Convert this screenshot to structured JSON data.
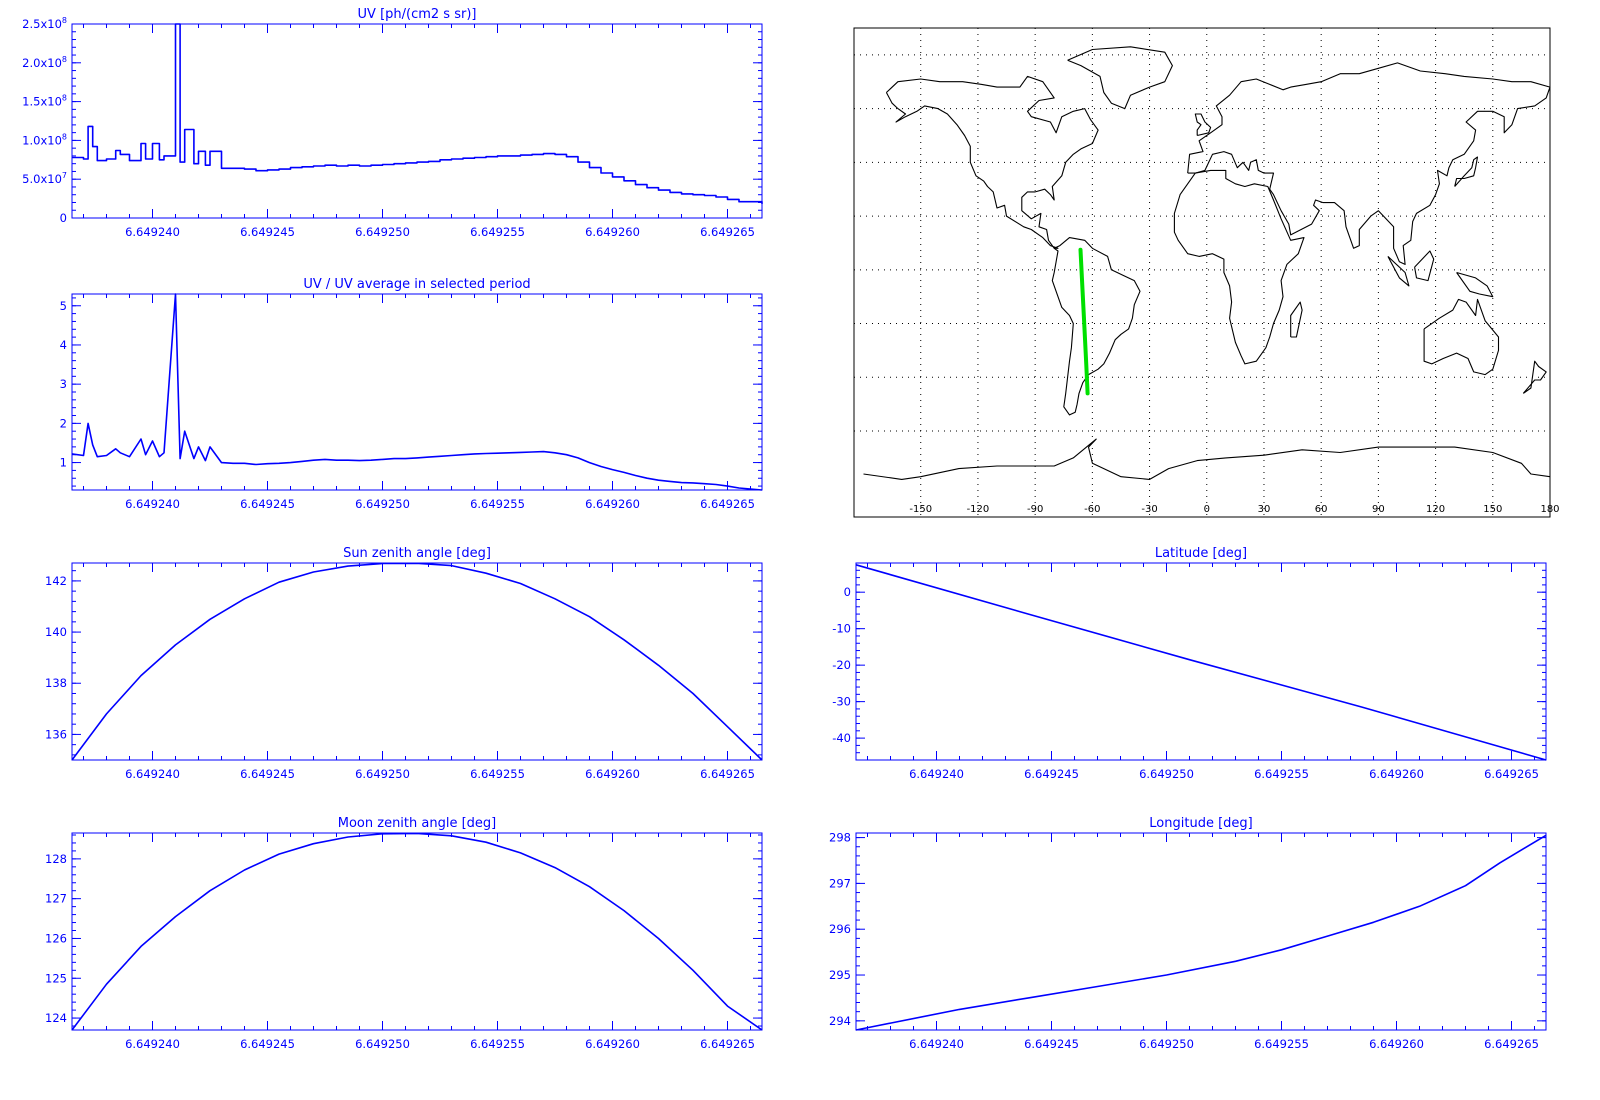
{
  "colors": {
    "axis": "#0000ff",
    "series": "#0000ff",
    "map_track": "#00e000",
    "coast": "#000000",
    "background": "#ffffff"
  },
  "chart_data": [
    {
      "id": "uv",
      "type": "line",
      "style": "histogram",
      "title": "UV [ph/(cm2 s sr)]",
      "xlim": [
        6.6492365,
        6.6492665
      ],
      "x_ticks": [
        6.64924,
        6.649245,
        6.64925,
        6.649255,
        6.64926,
        6.649265
      ],
      "x_tick_labels": [
        "6.649240",
        "6.649245",
        "6.649250",
        "6.649255",
        "6.649260",
        "6.649265"
      ],
      "ylim": [
        0,
        250000000
      ],
      "y_ticks": [
        0,
        50000000,
        100000000,
        150000000,
        200000000,
        250000000
      ],
      "y_tick_labels": [
        {
          "mant": "0",
          "exp": ""
        },
        {
          "mant": "5.0x10",
          "exp": "7"
        },
        {
          "mant": "1.0x10",
          "exp": "8"
        },
        {
          "mant": "1.5x10",
          "exp": "8"
        },
        {
          "mant": "2.0x10",
          "exp": "8"
        },
        {
          "mant": "2.5x10",
          "exp": "8"
        }
      ],
      "x": [
        6.6492365,
        6.649237,
        6.6492372,
        6.6492374,
        6.6492376,
        6.649238,
        6.6492384,
        6.6492386,
        6.649239,
        6.6492395,
        6.6492397,
        6.64924,
        6.6492403,
        6.6492405,
        6.649241,
        6.6492412,
        6.6492414,
        6.6492418,
        6.649242,
        6.6492423,
        6.6492425,
        6.649243,
        6.6492435,
        6.649244,
        6.6492445,
        6.649245,
        6.6492455,
        6.649246,
        6.6492465,
        6.649247,
        6.6492475,
        6.649248,
        6.6492485,
        6.649249,
        6.6492495,
        6.64925,
        6.6492505,
        6.649251,
        6.6492515,
        6.649252,
        6.6492525,
        6.649253,
        6.6492535,
        6.649254,
        6.6492545,
        6.649255,
        6.6492555,
        6.649256,
        6.6492565,
        6.649257,
        6.6492575,
        6.649258,
        6.6492585,
        6.649259,
        6.6492595,
        6.64926,
        6.6492605,
        6.649261,
        6.6492615,
        6.649262,
        6.6492625,
        6.649263,
        6.6492635,
        6.649264,
        6.6492645,
        6.649265,
        6.6492655,
        6.6492665
      ],
      "y": [
        78000000,
        76000000,
        118000000,
        92000000,
        74000000,
        76000000,
        87000000,
        82000000,
        74000000,
        96000000,
        76000000,
        96000000,
        75000000,
        80000000,
        250000000,
        72000000,
        114000000,
        70000000,
        86000000,
        68000000,
        86000000,
        64000000,
        64000000,
        63000000,
        61000000,
        62000000,
        63000000,
        65000000,
        66000000,
        67000000,
        68000000,
        67000000,
        68000000,
        67000000,
        68000000,
        69000000,
        70000000,
        71000000,
        72000000,
        73000000,
        75000000,
        76000000,
        77000000,
        78000000,
        79000000,
        80000000,
        80000000,
        81000000,
        82000000,
        83000000,
        82000000,
        79000000,
        72000000,
        65000000,
        58000000,
        53000000,
        48000000,
        43000000,
        39000000,
        36000000,
        33000000,
        31000000,
        30000000,
        29000000,
        27000000,
        24000000,
        21000000,
        18000000
      ]
    },
    {
      "id": "uv-ratio",
      "type": "line",
      "title": "UV / UV average in selected period",
      "xlim": [
        6.6492365,
        6.6492665
      ],
      "x_ticks": [
        6.64924,
        6.649245,
        6.64925,
        6.649255,
        6.64926,
        6.649265
      ],
      "x_tick_labels": [
        "6.649240",
        "6.649245",
        "6.649250",
        "6.649255",
        "6.649260",
        "6.649265"
      ],
      "ylim": [
        0.3,
        5.3
      ],
      "y_ticks": [
        1,
        2,
        3,
        4,
        5
      ],
      "y_tick_labels": [
        "1",
        "2",
        "3",
        "4",
        "5"
      ],
      "x": [
        6.6492365,
        6.649237,
        6.6492372,
        6.6492374,
        6.6492376,
        6.649238,
        6.6492384,
        6.6492386,
        6.649239,
        6.6492395,
        6.6492397,
        6.64924,
        6.6492403,
        6.6492405,
        6.649241,
        6.6492412,
        6.6492414,
        6.6492418,
        6.649242,
        6.6492423,
        6.6492425,
        6.649243,
        6.6492435,
        6.649244,
        6.6492445,
        6.649245,
        6.6492455,
        6.649246,
        6.6492465,
        6.649247,
        6.6492475,
        6.649248,
        6.6492485,
        6.649249,
        6.6492495,
        6.64925,
        6.6492505,
        6.649251,
        6.6492515,
        6.649252,
        6.6492525,
        6.649253,
        6.6492535,
        6.649254,
        6.6492545,
        6.649255,
        6.6492555,
        6.649256,
        6.6492565,
        6.649257,
        6.6492575,
        6.649258,
        6.6492585,
        6.649259,
        6.6492595,
        6.64926,
        6.6492605,
        6.649261,
        6.6492615,
        6.649262,
        6.6492625,
        6.649263,
        6.6492635,
        6.649264,
        6.6492645,
        6.649265,
        6.6492655,
        6.6492665
      ],
      "y": [
        1.22,
        1.18,
        2.0,
        1.45,
        1.15,
        1.18,
        1.35,
        1.25,
        1.15,
        1.6,
        1.2,
        1.55,
        1.15,
        1.25,
        5.3,
        1.1,
        1.8,
        1.1,
        1.4,
        1.05,
        1.4,
        1.0,
        0.98,
        0.98,
        0.95,
        0.97,
        0.98,
        1.0,
        1.03,
        1.06,
        1.08,
        1.06,
        1.06,
        1.05,
        1.06,
        1.08,
        1.1,
        1.1,
        1.12,
        1.14,
        1.16,
        1.18,
        1.2,
        1.22,
        1.23,
        1.24,
        1.25,
        1.26,
        1.27,
        1.28,
        1.25,
        1.2,
        1.12,
        1.0,
        0.9,
        0.82,
        0.75,
        0.67,
        0.6,
        0.55,
        0.52,
        0.49,
        0.48,
        0.46,
        0.44,
        0.4,
        0.35,
        0.3
      ]
    },
    {
      "id": "sun-zenith",
      "type": "line",
      "title": "Sun zenith angle [deg]",
      "xlim": [
        6.6492365,
        6.6492665
      ],
      "x_ticks": [
        6.64924,
        6.649245,
        6.64925,
        6.649255,
        6.64926,
        6.649265
      ],
      "x_tick_labels": [
        "6.649240",
        "6.649245",
        "6.649250",
        "6.649255",
        "6.649260",
        "6.649265"
      ],
      "ylim": [
        135.0,
        142.7
      ],
      "y_ticks": [
        136,
        138,
        140,
        142
      ],
      "y_tick_labels": [
        "136",
        "138",
        "140",
        "142"
      ],
      "x": [
        6.6492365,
        6.649238,
        6.6492395,
        6.649241,
        6.6492425,
        6.649244,
        6.6492455,
        6.649247,
        6.6492485,
        6.64925,
        6.6492515,
        6.649253,
        6.6492545,
        6.649256,
        6.6492575,
        6.649259,
        6.6492605,
        6.649262,
        6.6492635,
        6.649265,
        6.6492665
      ],
      "y": [
        135.0,
        136.8,
        138.3,
        139.5,
        140.5,
        141.3,
        141.95,
        142.35,
        142.58,
        142.68,
        142.69,
        142.6,
        142.3,
        141.9,
        141.3,
        140.6,
        139.7,
        138.7,
        137.6,
        136.3,
        135.0
      ]
    },
    {
      "id": "latitude",
      "type": "line",
      "title": "Latitude [deg]",
      "xlim": [
        6.6492365,
        6.6492665
      ],
      "x_ticks": [
        6.64924,
        6.649245,
        6.64925,
        6.649255,
        6.64926,
        6.649265
      ],
      "x_tick_labels": [
        "6.649240",
        "6.649245",
        "6.649250",
        "6.649255",
        "6.649260",
        "6.649265"
      ],
      "ylim": [
        -46,
        8
      ],
      "y_ticks": [
        -40,
        -30,
        -20,
        -10,
        0
      ],
      "y_tick_labels": [
        "-40",
        "-30",
        "-20",
        "-10",
        "0"
      ],
      "x": [
        6.6492365,
        6.649244,
        6.649251,
        6.6492585,
        6.6492665
      ],
      "y": [
        7.5,
        -6.0,
        -18.5,
        -31.5,
        -46.0
      ]
    },
    {
      "id": "moon-zenith",
      "type": "line",
      "title": "Moon zenith angle [deg]",
      "xlim": [
        6.6492365,
        6.6492665
      ],
      "x_ticks": [
        6.64924,
        6.649245,
        6.64925,
        6.649255,
        6.64926,
        6.649265
      ],
      "x_tick_labels": [
        "6.649240",
        "6.649245",
        "6.649250",
        "6.649255",
        "6.649260",
        "6.649265"
      ],
      "ylim": [
        123.7,
        128.65
      ],
      "y_ticks": [
        124,
        125,
        126,
        127,
        128
      ],
      "y_tick_labels": [
        "124",
        "125",
        "126",
        "127",
        "128"
      ],
      "x": [
        6.6492365,
        6.649238,
        6.6492395,
        6.649241,
        6.6492425,
        6.649244,
        6.6492455,
        6.649247,
        6.6492485,
        6.64925,
        6.6492515,
        6.649253,
        6.6492545,
        6.649256,
        6.6492575,
        6.649259,
        6.6492605,
        6.649262,
        6.6492635,
        6.649265,
        6.6492665
      ],
      "y": [
        123.7,
        124.85,
        125.8,
        126.55,
        127.2,
        127.72,
        128.12,
        128.38,
        128.55,
        128.63,
        128.64,
        128.58,
        128.42,
        128.15,
        127.78,
        127.3,
        126.7,
        126.0,
        125.2,
        124.3,
        123.7
      ]
    },
    {
      "id": "longitude",
      "type": "line",
      "title": "Longitude [deg]",
      "xlim": [
        6.6492365,
        6.6492665
      ],
      "x_ticks": [
        6.64924,
        6.649245,
        6.64925,
        6.649255,
        6.64926,
        6.649265
      ],
      "x_tick_labels": [
        "6.649240",
        "6.649245",
        "6.649250",
        "6.649255",
        "6.649260",
        "6.649265"
      ],
      "ylim": [
        293.8,
        298.1
      ],
      "y_ticks": [
        294,
        295,
        296,
        297,
        298
      ],
      "y_tick_labels": [
        "294",
        "295",
        "296",
        "297",
        "298"
      ],
      "x": [
        6.6492365,
        6.649238,
        6.649241,
        6.649244,
        6.649247,
        6.64925,
        6.649253,
        6.649255,
        6.649257,
        6.649259,
        6.649261,
        6.649263,
        6.6492645,
        6.6492665
      ],
      "y": [
        293.8,
        293.95,
        294.25,
        294.5,
        294.75,
        295.0,
        295.3,
        295.55,
        295.85,
        296.15,
        296.5,
        296.95,
        297.45,
        298.05
      ]
    },
    {
      "id": "map",
      "type": "scatter",
      "xlim": [
        -185,
        180
      ],
      "ylim": [
        -92,
        90
      ],
      "x_ticks": [
        -150,
        -120,
        -90,
        -60,
        -30,
        0,
        30,
        60,
        90,
        120,
        150,
        180
      ],
      "x_tick_labels": [
        "-150",
        "-120",
        "-90",
        "-60",
        "-30",
        "0",
        "30",
        "60",
        "90",
        "120",
        "150",
        "180"
      ],
      "grid": true,
      "track": {
        "lon": [
          -66.2,
          -65.5,
          -64.7,
          -63.9,
          -63.2,
          -62.5
        ],
        "lat": [
          7.5,
          -3.0,
          -14.0,
          -25.0,
          -35.5,
          -46.0
        ]
      }
    }
  ]
}
